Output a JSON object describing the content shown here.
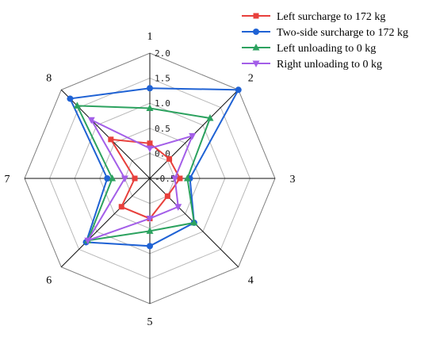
{
  "chart_data": {
    "type": "radar",
    "categories": [
      "1",
      "2",
      "3",
      "4",
      "5",
      "6",
      "7",
      "8"
    ],
    "rlim": [
      -0.5,
      2.0
    ],
    "rticks": [
      "-0.5",
      "0.0",
      "0.5",
      "1.0",
      "1.5",
      "2.0"
    ],
    "grid": true,
    "legend_position": "top-right",
    "series": [
      {
        "name": "Left surcharge to 172 kg",
        "color": "#e8403c",
        "marker": "square",
        "values": [
          0.2,
          0.05,
          0.1,
          0.0,
          0.3,
          0.3,
          -0.2,
          0.6
        ]
      },
      {
        "name": "Two-side surcharge to 172 kg",
        "color": "#1f62d4",
        "marker": "circle",
        "values": [
          1.3,
          2.0,
          0.3,
          0.75,
          0.85,
          1.3,
          0.35,
          1.75
        ]
      },
      {
        "name": "Left unloading to 0 kg",
        "color": "#2ca25f",
        "marker": "triangle-up",
        "values": [
          0.9,
          1.2,
          0.25,
          0.75,
          0.55,
          1.25,
          0.25,
          1.55
        ]
      },
      {
        "name": "Right unloading to 0 kg",
        "color": "#a35ee8",
        "marker": "triangle-down",
        "values": [
          0.1,
          0.7,
          0.0,
          0.3,
          0.3,
          1.25,
          0.0,
          1.15
        ]
      }
    ]
  }
}
